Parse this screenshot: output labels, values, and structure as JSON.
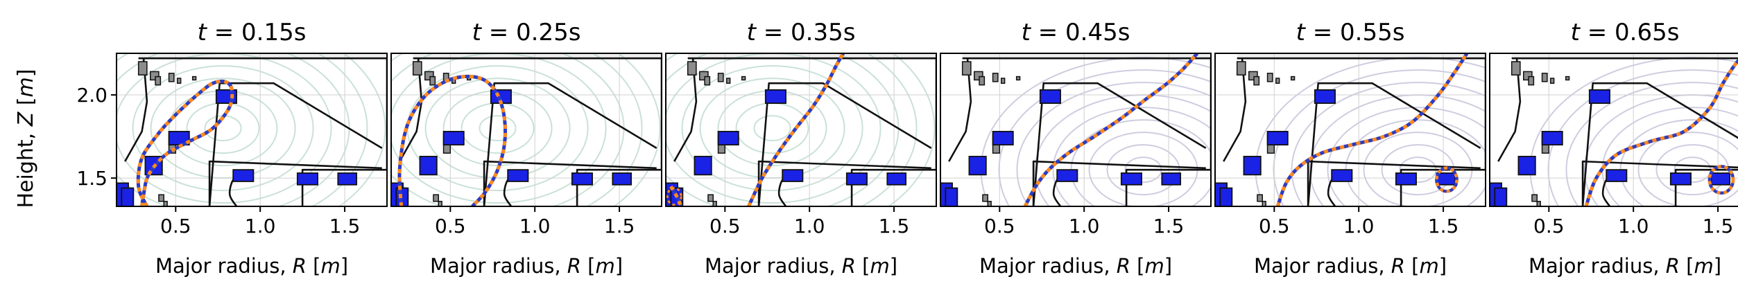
{
  "figure": {
    "ylabel_prefix": "Height, ",
    "ylabel_sym": "Z",
    "xlabel_prefix": "Major radius, ",
    "xlabel_sym": "R",
    "unit_sym": "m",
    "yticks": [
      "2.0",
      "1.5"
    ],
    "xticks": [
      "0.5",
      "1.0",
      "1.5"
    ]
  },
  "chart_data": [
    {
      "type": "contour",
      "title_var": "t",
      "title_value": "0.15s",
      "xlim": [
        0.15,
        1.75
      ],
      "ylim": [
        1.33,
        2.25
      ],
      "contour_tone": "green",
      "grid": true,
      "separatrix": [
        [
          0.33,
          1.33
        ],
        [
          0.28,
          1.45
        ],
        [
          0.3,
          1.62
        ],
        [
          0.4,
          1.77
        ],
        [
          0.47,
          1.85
        ],
        [
          0.55,
          1.93
        ],
        [
          0.65,
          2.02
        ],
        [
          0.72,
          2.07
        ],
        [
          0.79,
          2.08
        ],
        [
          0.83,
          2.04
        ],
        [
          0.82,
          1.93
        ],
        [
          0.72,
          1.8
        ],
        [
          0.58,
          1.72
        ],
        [
          0.44,
          1.64
        ],
        [
          0.34,
          1.52
        ],
        [
          0.31,
          1.4
        ],
        [
          0.3,
          1.33
        ]
      ]
    },
    {
      "type": "contour",
      "title_var": "t",
      "title_value": "0.25s",
      "xlim": [
        0.15,
        1.75
      ],
      "ylim": [
        1.33,
        2.25
      ],
      "contour_tone": "green",
      "grid": true,
      "separatrix": [
        [
          0.21,
          1.33
        ],
        [
          0.2,
          1.55
        ],
        [
          0.24,
          1.8
        ],
        [
          0.33,
          1.97
        ],
        [
          0.45,
          2.07
        ],
        [
          0.58,
          2.11
        ],
        [
          0.7,
          2.09
        ],
        [
          0.78,
          2.0
        ],
        [
          0.82,
          1.86
        ],
        [
          0.82,
          1.7
        ],
        [
          0.78,
          1.55
        ],
        [
          0.71,
          1.42
        ],
        [
          0.63,
          1.33
        ]
      ]
    },
    {
      "type": "contour",
      "title_var": "t",
      "title_value": "0.35s",
      "xlim": [
        0.15,
        1.75
      ],
      "ylim": [
        1.33,
        2.25
      ],
      "contour_tone": "green",
      "grid": true,
      "separatrix": [
        [
          0.64,
          1.33
        ],
        [
          0.72,
          1.5
        ],
        [
          0.82,
          1.66
        ],
        [
          0.92,
          1.8
        ],
        [
          1.02,
          1.93
        ],
        [
          1.1,
          2.06
        ],
        [
          1.16,
          2.18
        ],
        [
          1.2,
          2.25
        ]
      ],
      "secondary": [
        [
          0.18,
          1.45
        ],
        [
          0.22,
          1.38
        ],
        [
          0.24,
          1.33
        ]
      ]
    },
    {
      "type": "contour",
      "title_var": "t",
      "title_value": "0.45s",
      "xlim": [
        0.15,
        1.75
      ],
      "ylim": [
        1.33,
        2.25
      ],
      "contour_tone": "purple",
      "grid": true,
      "separatrix": [
        [
          0.65,
          1.33
        ],
        [
          0.72,
          1.46
        ],
        [
          0.8,
          1.56
        ],
        [
          0.92,
          1.66
        ],
        [
          1.06,
          1.75
        ],
        [
          1.22,
          1.86
        ],
        [
          1.36,
          1.97
        ],
        [
          1.48,
          2.06
        ],
        [
          1.58,
          2.15
        ],
        [
          1.67,
          2.25
        ]
      ]
    },
    {
      "type": "contour",
      "title_var": "t",
      "title_value": "0.55s",
      "xlim": [
        0.15,
        1.75
      ],
      "ylim": [
        1.33,
        2.25
      ],
      "contour_tone": "purple",
      "grid": true,
      "separatrix": [
        [
          0.52,
          1.33
        ],
        [
          0.57,
          1.47
        ],
        [
          0.65,
          1.57
        ],
        [
          0.78,
          1.65
        ],
        [
          0.96,
          1.7
        ],
        [
          1.15,
          1.75
        ],
        [
          1.32,
          1.84
        ],
        [
          1.47,
          2.0
        ],
        [
          1.57,
          2.14
        ],
        [
          1.64,
          2.25
        ]
      ],
      "island": {
        "r": 1.52,
        "z": 1.49,
        "rx": 0.06,
        "rz": 0.07
      }
    },
    {
      "type": "contour",
      "title_var": "t",
      "title_value": "0.65s",
      "xlim": [
        0.15,
        1.75
      ],
      "ylim": [
        1.33,
        2.25
      ],
      "contour_tone": "purple",
      "grid": true,
      "separatrix": [
        [
          0.72,
          1.33
        ],
        [
          0.78,
          1.5
        ],
        [
          0.9,
          1.64
        ],
        [
          1.1,
          1.72
        ],
        [
          1.3,
          1.78
        ],
        [
          1.45,
          1.92
        ],
        [
          1.53,
          2.07
        ],
        [
          1.6,
          2.18
        ],
        [
          1.66,
          2.25
        ]
      ],
      "island": {
        "r": 1.52,
        "z": 1.49,
        "rx": 0.07,
        "rz": 0.08
      }
    }
  ]
}
